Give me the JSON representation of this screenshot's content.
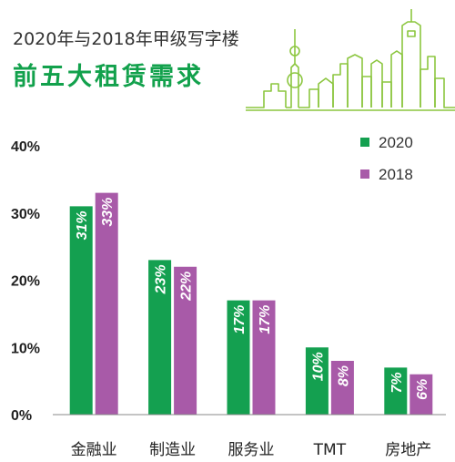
{
  "header": {
    "subtitle": "2020年与2018年甲级写字楼",
    "title": "前五大租赁需求"
  },
  "colors": {
    "accent": "#12a14c",
    "series_2020": "#14a050",
    "series_2018": "#a85aa8",
    "axis_text": "#222222",
    "label_text": "#ffffff"
  },
  "chart_data": {
    "type": "bar",
    "categories": [
      "金融业",
      "制造业",
      "服务业",
      "TMT",
      "房地产"
    ],
    "series": [
      {
        "name": "2020",
        "values": [
          31,
          23,
          17,
          10,
          7
        ],
        "labels": [
          "31%",
          "23%",
          "17%",
          "10%",
          "7%"
        ]
      },
      {
        "name": "2018",
        "values": [
          33,
          22,
          17,
          8,
          6
        ],
        "labels": [
          "33%",
          "22%",
          "17%",
          "8%",
          "6%"
        ]
      }
    ],
    "y_ticks": [
      "0%",
      "10%",
      "20%",
      "30%",
      "40%"
    ],
    "ylim": [
      0,
      40
    ],
    "legend_position": "top-right",
    "grid": false
  }
}
